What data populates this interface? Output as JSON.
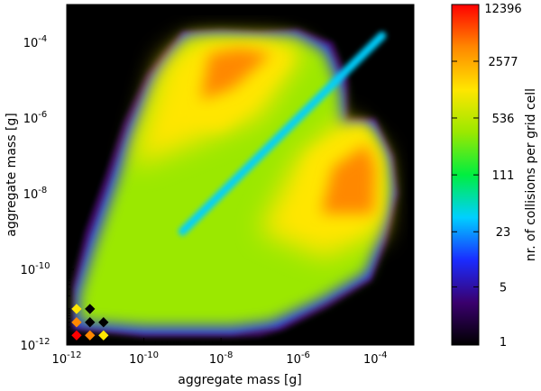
{
  "chart_data": {
    "type": "heatmap",
    "title": "",
    "xlabel": "aggregate mass [g]",
    "ylabel": "aggregate mass [g]",
    "xscale": "log",
    "yscale": "log",
    "xlim": [
      1e-12,
      0.001
    ],
    "ylim": [
      1e-12,
      0.001
    ],
    "x_ticks": [
      {
        "value": 1e-12,
        "base": "10",
        "exp": "-12"
      },
      {
        "value": 1e-10,
        "base": "10",
        "exp": "-10"
      },
      {
        "value": 1e-08,
        "base": "10",
        "exp": "-8"
      },
      {
        "value": 1e-06,
        "base": "10",
        "exp": "-6"
      },
      {
        "value": 0.0001,
        "base": "10",
        "exp": "-4"
      }
    ],
    "y_ticks": [
      {
        "value": 1e-12,
        "base": "10",
        "exp": "-12"
      },
      {
        "value": 1e-10,
        "base": "10",
        "exp": "-10"
      },
      {
        "value": 1e-08,
        "base": "10",
        "exp": "-8"
      },
      {
        "value": 1e-06,
        "base": "10",
        "exp": "-6"
      },
      {
        "value": 0.0001,
        "base": "10",
        "exp": "-4"
      }
    ],
    "colorbar": {
      "label": "nr. of collisions per grid cell",
      "scale": "log",
      "range": [
        1,
        12396
      ],
      "ticks": [
        {
          "value": 1,
          "label": "1"
        },
        {
          "value": 5,
          "label": "5"
        },
        {
          "value": 23,
          "label": "23"
        },
        {
          "value": 111,
          "label": "111"
        },
        {
          "value": 536,
          "label": "536"
        },
        {
          "value": 2577,
          "label": "2577"
        },
        {
          "value": 12396,
          "label": "12396"
        }
      ],
      "colormap": [
        "#000000",
        "#3a006e",
        "#1a2cff",
        "#00d0ff",
        "#00ee40",
        "#9be800",
        "#ffe600",
        "#ff8800",
        "#ff0000"
      ]
    },
    "grid": false,
    "background_color": "#000000",
    "features": [
      {
        "name": "diagonal band (equal masses)",
        "level": 40
      },
      {
        "name": "peak region upper-left",
        "x_range": [
          1e-09,
          1e-06
        ],
        "y_range": [
          1e-06,
          0.0001
        ],
        "level": 2500
      },
      {
        "name": "peak region lower-right",
        "x_range": [
          1e-06,
          0.0001
        ],
        "y_range": [
          1e-09,
          1e-06
        ],
        "level": 2500
      }
    ]
  }
}
